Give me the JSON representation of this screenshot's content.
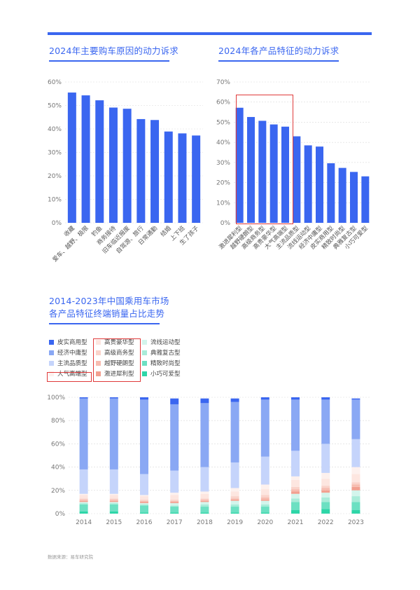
{
  "chart_data": [
    {
      "type": "bar",
      "title": "2024年主要购车原因的动力诉求",
      "categories": [
        "收藏",
        "爱车、越野、极限",
        "钓鱼",
        "商务接待",
        "旧车临近报废",
        "自驾游、旅行",
        "日常通勤",
        "结婚",
        "上下班",
        "生了孩子"
      ],
      "values": [
        55.5,
        54.3,
        52.2,
        49.1,
        48.6,
        44.2,
        43.8,
        38.9,
        38.1,
        37.2
      ],
      "ylim": [
        0,
        60
      ],
      "yticks": [
        "0%",
        "10%",
        "20%",
        "30%",
        "40%",
        "50%",
        "60%"
      ],
      "color": "#3a66f0"
    },
    {
      "type": "bar",
      "title": "2024年各产品特征的动力诉求",
      "categories": [
        "激进犀利型",
        "越野硬朗型",
        "高级商务型",
        "高贵豪华型",
        "大气高端型",
        "主流品质型",
        "流线运动型",
        "经济中庸型",
        "皮实商用型",
        "精致时尚型",
        "典雅复古型",
        "小巧可爱型"
      ],
      "values": [
        57.2,
        52.6,
        50.7,
        48.9,
        47.8,
        43.0,
        38.5,
        37.9,
        29.6,
        27.3,
        25.3,
        23.1
      ],
      "highlighted_count": 5,
      "ylim": [
        0,
        70
      ],
      "yticks": [
        "0%",
        "10%",
        "20%",
        "30%",
        "40%",
        "50%",
        "60%",
        "70%"
      ],
      "color": "#3a66f0"
    },
    {
      "type": "bar",
      "stacked": true,
      "title": "2014-2023年中国乘用车市场\n各产品特征终端销量占比走势",
      "title_lines": [
        "2014-2023年中国乘用车市场",
        "各产品特征终端销量占比走势"
      ],
      "categories": [
        "2014",
        "2015",
        "2016",
        "2017",
        "2018",
        "2019",
        "2020",
        "2021",
        "2022",
        "2023"
      ],
      "ylim": [
        0,
        100
      ],
      "yticks": [
        "0%",
        "20%",
        "40%",
        "60%",
        "80%",
        "100%"
      ],
      "series": [
        {
          "name": "小巧可爱型",
          "color": "#2ed6a8",
          "values": [
            2,
            2,
            1,
            1,
            1,
            1,
            1,
            3,
            4,
            3
          ]
        },
        {
          "name": "精致时尚型",
          "color": "#6ce0c2",
          "values": [
            6,
            6,
            6,
            5,
            5,
            5,
            5,
            7,
            6,
            7
          ]
        },
        {
          "name": "典雅复古型",
          "color": "#a9ecd9",
          "values": [
            1,
            1,
            1,
            1,
            2,
            2,
            2,
            3,
            4,
            5
          ]
        },
        {
          "name": "流线运动型",
          "color": "#d3f5ec",
          "values": [
            1,
            1,
            1,
            2,
            2,
            3,
            3,
            4,
            4,
            5
          ]
        },
        {
          "name": "激进犀利型",
          "color": "#f2a090",
          "values": [
            1,
            1,
            1,
            1,
            1,
            1,
            1,
            2,
            2,
            3
          ]
        },
        {
          "name": "越野硬朗型",
          "color": "#f7bcb0",
          "values": [
            1,
            1,
            1,
            1,
            1,
            1,
            2,
            2,
            2,
            2
          ]
        },
        {
          "name": "高级商务型",
          "color": "#fad3ca",
          "values": [
            1,
            1,
            1,
            1,
            1,
            2,
            2,
            2,
            2,
            2
          ]
        },
        {
          "name": "高贵豪华型",
          "color": "#fde6e0",
          "values": [
            3,
            3,
            3,
            4,
            4,
            4,
            5,
            6,
            6,
            7
          ]
        },
        {
          "name": "大气高端型",
          "color": "#fdf1ee",
          "values": [
            1,
            1,
            1,
            2,
            2,
            3,
            4,
            3,
            5,
            6
          ]
        },
        {
          "name": "主流品质型",
          "color": "#c5d4fb",
          "values": [
            21,
            21,
            18,
            19,
            21,
            22,
            24,
            22,
            25,
            24
          ]
        },
        {
          "name": "经济中庸型",
          "color": "#8aa8f4",
          "values": [
            61,
            61,
            64,
            57,
            55,
            52,
            49,
            44,
            38,
            34
          ]
        },
        {
          "name": "皮实商用型",
          "color": "#3a66f0",
          "values": [
            1,
            1,
            2,
            5,
            4,
            3,
            2,
            2,
            2,
            1
          ]
        }
      ],
      "legend_columns": [
        [
          "皮实商用型",
          "经济中庸型",
          "主流品质型",
          "大气高端型"
        ],
        [
          "高贵豪华型",
          "高级商务型",
          "越野硬朗型",
          "激进犀利型"
        ],
        [
          "流线运动型",
          "典雅复古型",
          "精致时尚型",
          "小巧可爱型"
        ]
      ]
    }
  ],
  "source": "数据来源：易车研究院"
}
